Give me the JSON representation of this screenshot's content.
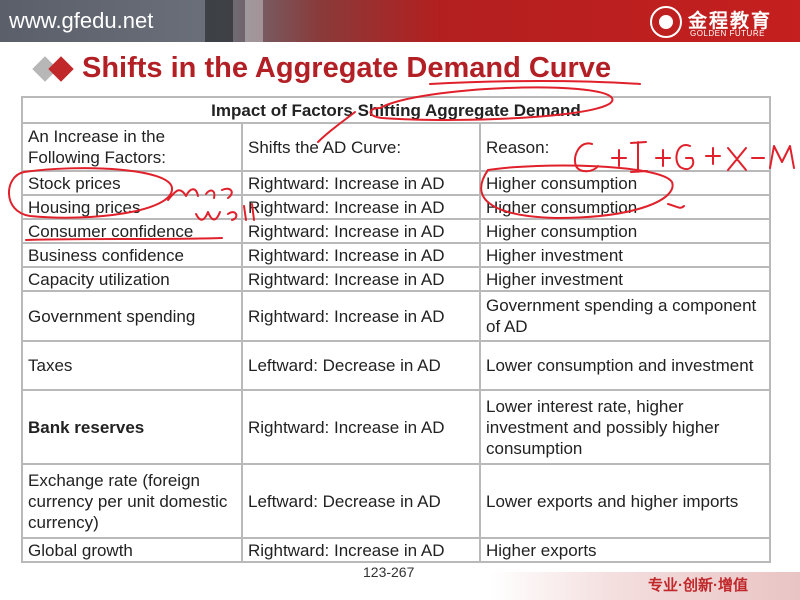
{
  "header": {
    "site_url": "www.gfedu.net",
    "logo_cn": "金程教育",
    "logo_en": "GOLDEN FUTURE"
  },
  "slide": {
    "title": "Shifts in the Aggregate Demand Curve",
    "page_number": "123-267",
    "slogan": "专业·创新·增值"
  },
  "table": {
    "caption": "Impact of Factors Shifting Aggregate Demand",
    "headers": [
      "An Increase in the Following Factors:",
      "Shifts the AD Curve:",
      "Reason:"
    ],
    "rows": [
      [
        "Stock prices",
        "Rightward: Increase in AD",
        "Higher consumption"
      ],
      [
        "Housing prices",
        "Rightward: Increase in AD",
        "Higher consumption"
      ],
      [
        "Consumer confidence",
        "Rightward: Increase in AD",
        "Higher consumption"
      ],
      [
        "Business confidence",
        "Rightward: Increase in AD",
        "Higher investment"
      ],
      [
        "Capacity utilization",
        "Rightward: Increase in AD",
        "Higher investment"
      ],
      [
        "Government spending",
        "Rightward: Increase in AD",
        "Government spending a component of AD"
      ],
      [
        "Taxes",
        "Leftward: Decrease in AD",
        "Lower consumption and investment"
      ],
      [
        "Bank reserves",
        "Rightward: Increase in AD",
        "Lower interest rate, higher investment and possibly higher consumption"
      ],
      [
        "Exchange rate (foreign currency per unit domestic currency)",
        "Leftward: Decrease in AD",
        "Lower exports and higher imports"
      ],
      [
        "Global growth",
        "Rightward: Increase in AD",
        "Higher exports"
      ]
    ]
  },
  "annotations": {
    "formula": "C+I+G+X-M",
    "note": "more wealth"
  },
  "colors": {
    "title_red": "#b21f24",
    "ink_red": "#e0202a"
  }
}
